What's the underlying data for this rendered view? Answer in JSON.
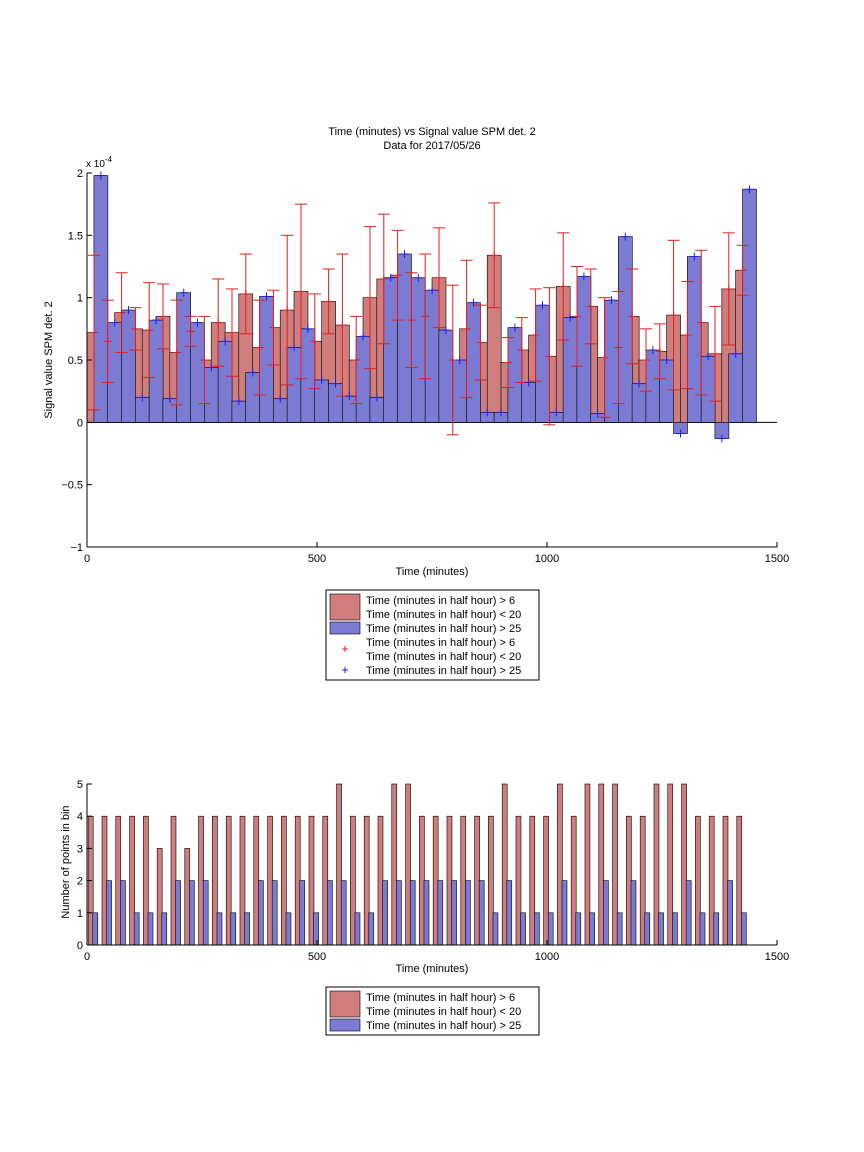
{
  "colors": {
    "red_fill": "#cf7d7d",
    "blue_fill": "#7b7bd3",
    "red_err": "#e02020",
    "blue_err": "#2020e0",
    "axis": "#000000"
  },
  "chart_data": [
    {
      "type": "bar",
      "title": "Time (minutes) vs Signal value SPM det. 2",
      "subtitle": "Data for 2017/05/26",
      "xlabel": "Time (minutes)",
      "ylabel": "Signal value SPM det. 2",
      "y_exponent_label": "x 10",
      "y_exponent_power": "-4",
      "xlim": [
        0,
        1500
      ],
      "ylim": [
        -1,
        2
      ],
      "xticks": [
        0,
        500,
        1000,
        1500
      ],
      "xtick_labels": [
        "0",
        "500",
        "1000",
        "1500"
      ],
      "yticks": [
        -1,
        -0.5,
        0,
        0.5,
        1,
        1.5,
        2
      ],
      "ytick_labels": [
        "−1",
        "−0.5",
        "0",
        "0.5",
        "1",
        "1.5",
        "2"
      ],
      "grid": false,
      "legend_position": "below-center",
      "legend": [
        {
          "kind": "bar",
          "color": "red",
          "lines": [
            "Time (minutes in half hour) > 6",
            "Time (minutes in half hour) < 20"
          ]
        },
        {
          "kind": "bar",
          "color": "blue",
          "lines": [
            "Time (minutes in half hour) > 25"
          ]
        },
        {
          "kind": "marker",
          "color": "red",
          "lines": [
            "Time (minutes in half hour) > 6",
            "Time (minutes in half hour) < 20"
          ]
        },
        {
          "kind": "marker",
          "color": "blue",
          "lines": [
            "Time (minutes in half hour) > 25"
          ]
        }
      ],
      "series": [
        {
          "color": "red",
          "x": [
            0,
            30,
            60,
            90,
            120,
            150,
            180,
            210,
            240,
            270,
            300,
            330,
            360,
            390,
            420,
            450,
            480,
            510,
            540,
            570,
            600,
            630,
            660,
            690,
            720,
            750,
            780,
            810,
            840,
            870,
            900,
            930,
            960,
            990,
            1020,
            1050,
            1080,
            1110,
            1140,
            1170,
            1200,
            1230,
            1260,
            1290,
            1320,
            1350,
            1380,
            1410
          ],
          "y": [
            0.72,
            0.65,
            0.88,
            0.75,
            0.74,
            0.85,
            0.56,
            0.73,
            0.5,
            0.8,
            0.72,
            1.03,
            0.6,
            0.76,
            0.9,
            1.05,
            0.65,
            0.97,
            0.78,
            0.5,
            1.0,
            1.15,
            1.18,
            0.82,
            0.85,
            1.16,
            0.5,
            0.75,
            0.64,
            1.34,
            0.48,
            0.58,
            0.7,
            0.53,
            1.09,
            0.85,
            0.93,
            0.52,
            0.6,
            0.85,
            0.5,
            0.57,
            0.86,
            0.7,
            0.8,
            0.55,
            1.07,
            1.22
          ],
          "err": [
            0.62,
            0.33,
            0.32,
            0.17,
            0.38,
            0.26,
            0.42,
            0.12,
            0.35,
            0.35,
            0.35,
            0.32,
            0.38,
            0.3,
            0.6,
            0.7,
            0.38,
            0.26,
            0.57,
            0.35,
            0.57,
            0.52,
            0.36,
            0.38,
            0.5,
            0.4,
            0.6,
            0.55,
            0.3,
            0.42,
            0.2,
            0.26,
            0.37,
            0.55,
            0.43,
            0.4,
            0.3,
            0.48,
            0.45,
            0.38,
            0.25,
            0.22,
            0.6,
            0.43,
            0.58,
            0.38,
            0.45,
            0.2
          ]
        },
        {
          "color": "blue",
          "x": [
            15,
            45,
            75,
            105,
            135,
            165,
            195,
            225,
            255,
            285,
            315,
            345,
            375,
            405,
            435,
            465,
            495,
            525,
            555,
            585,
            615,
            645,
            675,
            705,
            735,
            765,
            795,
            825,
            855,
            885,
            915,
            945,
            975,
            1005,
            1035,
            1065,
            1095,
            1125,
            1155,
            1185,
            1215,
            1245,
            1275,
            1305,
            1335,
            1365,
            1395,
            1425
          ],
          "y": [
            1.98,
            0.8,
            0.9,
            0.2,
            0.82,
            0.19,
            1.04,
            0.8,
            0.44,
            0.65,
            0.17,
            0.4,
            1.01,
            0.19,
            0.6,
            0.75,
            0.34,
            0.31,
            0.21,
            0.69,
            0.2,
            1.16,
            1.35,
            1.16,
            1.06,
            0.74,
            0.5,
            0.96,
            0.08,
            0.08,
            0.76,
            0.32,
            0.94,
            0.08,
            0.84,
            1.17,
            0.07,
            0.98,
            1.49,
            0.31,
            0.58,
            0.5,
            -0.09,
            1.33,
            0.53,
            -0.13,
            0.55,
            1.87
          ]
        }
      ]
    },
    {
      "type": "bar",
      "title": "",
      "xlabel": "Time (minutes)",
      "ylabel": "Number of points in bin",
      "xlim": [
        0,
        1500
      ],
      "ylim": [
        0,
        5
      ],
      "xticks": [
        0,
        500,
        1000,
        1500
      ],
      "xtick_labels": [
        "0",
        "500",
        "1000",
        "1500"
      ],
      "yticks": [
        0,
        1,
        2,
        3,
        4,
        5
      ],
      "ytick_labels": [
        "0",
        "1",
        "2",
        "3",
        "4",
        "5"
      ],
      "grid": false,
      "legend_position": "below-center",
      "legend": [
        {
          "kind": "bar",
          "color": "red",
          "lines": [
            "Time (minutes in half hour) > 6",
            "Time (minutes in half hour) < 20"
          ]
        },
        {
          "kind": "bar",
          "color": "blue",
          "lines": [
            "Time (minutes in half hour) > 25"
          ]
        }
      ],
      "series": [
        {
          "color": "red",
          "x": [
            8,
            38,
            68,
            98,
            128,
            158,
            188,
            218,
            248,
            278,
            308,
            338,
            368,
            398,
            428,
            458,
            488,
            518,
            548,
            578,
            608,
            638,
            668,
            698,
            728,
            758,
            788,
            818,
            848,
            878,
            908,
            938,
            968,
            998,
            1028,
            1058,
            1088,
            1118,
            1148,
            1178,
            1208,
            1238,
            1268,
            1298,
            1328,
            1358,
            1388,
            1418
          ],
          "values": [
            4,
            4,
            4,
            4,
            4,
            3,
            4,
            3,
            4,
            4,
            4,
            4,
            4,
            4,
            4,
            4,
            4,
            4,
            5,
            4,
            4,
            4,
            5,
            5,
            4,
            4,
            4,
            4,
            4,
            4,
            5,
            4,
            4,
            4,
            5,
            4,
            5,
            5,
            5,
            4,
            4,
            5,
            5,
            5,
            4,
            4,
            4,
            4
          ]
        },
        {
          "color": "blue",
          "x": [
            18,
            48,
            78,
            108,
            138,
            168,
            198,
            228,
            258,
            288,
            318,
            348,
            378,
            408,
            438,
            468,
            498,
            528,
            558,
            588,
            618,
            648,
            678,
            708,
            738,
            768,
            798,
            828,
            858,
            888,
            918,
            948,
            978,
            1008,
            1038,
            1068,
            1098,
            1128,
            1158,
            1188,
            1218,
            1248,
            1278,
            1308,
            1338,
            1368,
            1398,
            1428
          ],
          "values": [
            1,
            2,
            2,
            1,
            1,
            1,
            2,
            2,
            2,
            1,
            1,
            1,
            2,
            2,
            1,
            2,
            1,
            2,
            2,
            1,
            1,
            2,
            2,
            2,
            2,
            2,
            2,
            2,
            2,
            1,
            2,
            1,
            1,
            1,
            2,
            1,
            1,
            2,
            1,
            2,
            1,
            1,
            1,
            2,
            1,
            1,
            2,
            1
          ]
        }
      ]
    }
  ]
}
